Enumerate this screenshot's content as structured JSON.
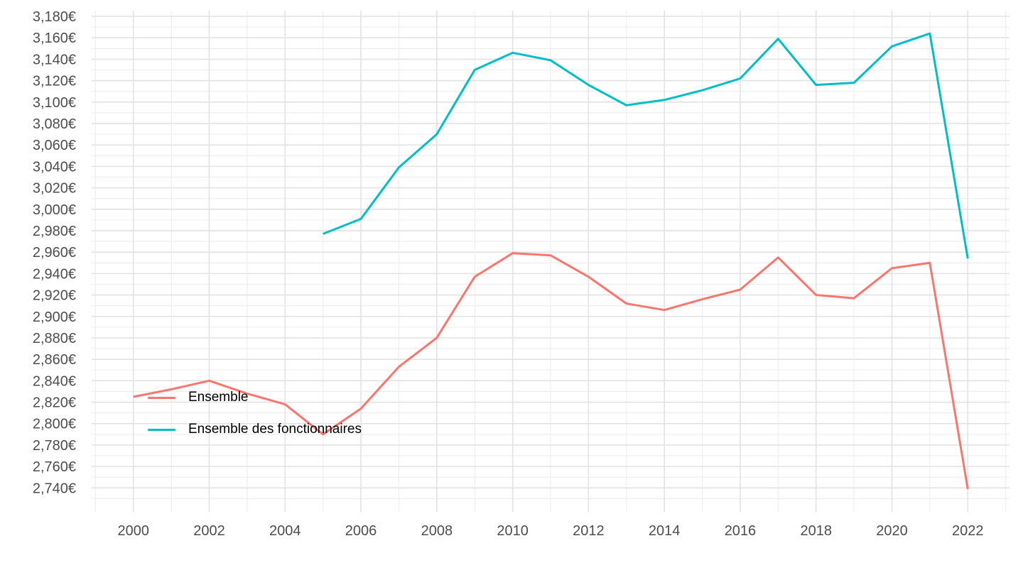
{
  "chart_data": {
    "type": "line",
    "title": "",
    "xlabel": "",
    "ylabel": "",
    "currency_suffix": "€",
    "x_ticks": [
      2000,
      2002,
      2004,
      2006,
      2008,
      2010,
      2012,
      2014,
      2016,
      2018,
      2020,
      2022
    ],
    "y_ticks": [
      2740,
      2760,
      2780,
      2800,
      2820,
      2840,
      2860,
      2880,
      2900,
      2920,
      2940,
      2960,
      2980,
      3000,
      3020,
      3040,
      3060,
      3080,
      3100,
      3120,
      3140,
      3160,
      3180
    ],
    "y_tick_labels": [
      "2,740€",
      "2,760€",
      "2,780€",
      "2,800€",
      "2,820€",
      "2,840€",
      "2,860€",
      "2,880€",
      "2,900€",
      "2,920€",
      "2,940€",
      "2,960€",
      "2,980€",
      "3,000€",
      "3,020€",
      "3,040€",
      "3,060€",
      "3,080€",
      "3,100€",
      "3,120€",
      "3,140€",
      "3,160€",
      "3,180€"
    ],
    "x_range": [
      1998.9,
      2023.1
    ],
    "y_range": [
      2717.7,
      3185.3
    ],
    "grid": {
      "major": true,
      "minor": true
    },
    "legend_position": "inside-left-middle",
    "series": [
      {
        "name": "Ensemble",
        "color": "#F8766D",
        "x": [
          2000,
          2001,
          2002,
          2003,
          2004,
          2005,
          2006,
          2007,
          2008,
          2009,
          2010,
          2011,
          2012,
          2013,
          2014,
          2015,
          2016,
          2017,
          2018,
          2019,
          2020,
          2021,
          2022
        ],
        "values": [
          2825,
          2832,
          2840,
          2828,
          2818,
          2790,
          2814,
          2853,
          2880,
          2937,
          2959,
          2957,
          2937,
          2912,
          2906,
          2916,
          2925,
          2955,
          2920,
          2917,
          2945,
          2950,
          2739
        ]
      },
      {
        "name": "Ensemble des fonctionnaires",
        "color": "#00BFC4",
        "x": [
          2005,
          2006,
          2007,
          2008,
          2009,
          2010,
          2011,
          2012,
          2013,
          2014,
          2015,
          2016,
          2017,
          2018,
          2019,
          2020,
          2021,
          2022
        ],
        "values": [
          2977,
          2991,
          3039,
          3070,
          3130,
          3146,
          3139,
          3116,
          3097,
          3102,
          3111,
          3122,
          3159,
          3116,
          3118,
          3152,
          3164,
          2954
        ]
      }
    ]
  },
  "style": {
    "background": "#FFFFFF",
    "axis_text_color": "#4D4D4D",
    "legend_text_color": "#000000",
    "grid_major_color": "#E2E2E2",
    "grid_minor_color": "#EDEDED"
  }
}
